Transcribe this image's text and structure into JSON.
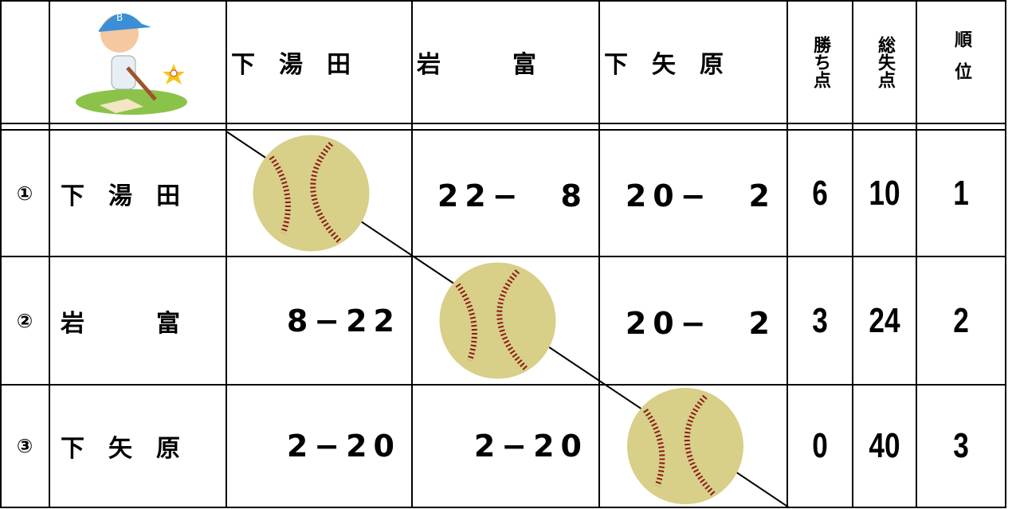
{
  "header": {
    "columns": [
      "下　湯　田",
      "岩　　　富",
      "下　矢　原"
    ],
    "stats": [
      "勝ち点",
      "総失点",
      "順位"
    ]
  },
  "rows": [
    {
      "number": "①",
      "team": "下　湯　田",
      "scores": [
        "22−　8",
        "20−　2"
      ],
      "points": 6,
      "runs_allowed": 10,
      "rank": 1
    },
    {
      "number": "②",
      "team": "岩　　　富",
      "scores": [
        "8−22",
        "20−　2"
      ],
      "points": 3,
      "runs_allowed": 24,
      "rank": 2
    },
    {
      "number": "③",
      "team": "下　矢　原",
      "scores": [
        "2−20",
        "2−20"
      ],
      "points": 0,
      "runs_allowed": 40,
      "rank": 3
    }
  ]
}
